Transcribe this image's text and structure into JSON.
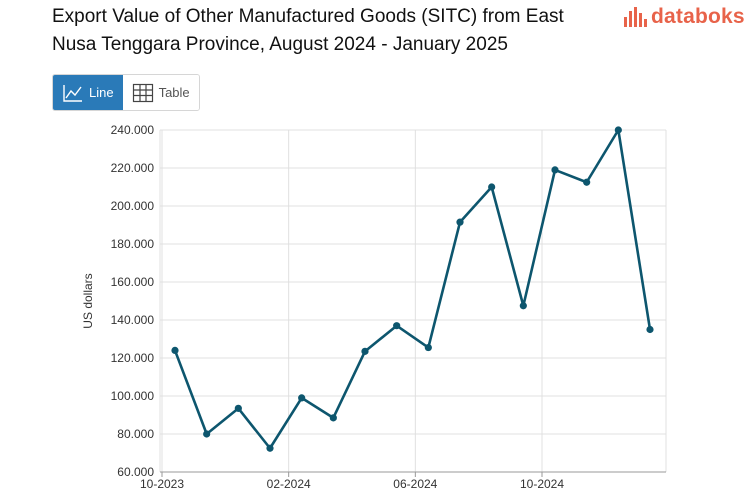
{
  "header": {
    "title": "Export Value of Other Manufactured Goods (SITC) from East Nusa Tenggara Province, August 2024 - January 2025",
    "brand": "databoks"
  },
  "view_toggle": {
    "line_label": "Line",
    "table_label": "Table",
    "active": "line"
  },
  "colors": {
    "line": "#0d566e",
    "grid": "#e0e0e0",
    "toggle_active": "#2a7ab8",
    "brand": "#e8634a"
  },
  "chart_data": {
    "type": "line",
    "title": "Export Value of Other Manufactured Goods (SITC) from East Nusa Tenggara Province, August 2024 - January 2025",
    "xlabel": "",
    "ylabel": "US dollars",
    "ylim": [
      60000,
      240000
    ],
    "yticks": [
      60000,
      80000,
      100000,
      120000,
      140000,
      160000,
      180000,
      200000,
      220000,
      240000
    ],
    "ytick_labels": [
      "60.000",
      "80.000",
      "100.000",
      "120.000",
      "140.000",
      "160.000",
      "180.000",
      "200.000",
      "220.000",
      "240.000"
    ],
    "x": [
      "2023-10",
      "2023-11",
      "2023-12",
      "2024-01",
      "2024-02",
      "2024-03",
      "2024-04",
      "2024-05",
      "2024-06",
      "2024-07",
      "2024-08",
      "2024-09",
      "2024-10",
      "2024-11",
      "2024-12",
      "2025-01"
    ],
    "xticks": [
      {
        "index": 0,
        "label": "10-2023"
      },
      {
        "index": 4,
        "label": "02-2024"
      },
      {
        "index": 8,
        "label": "06-2024"
      },
      {
        "index": 12,
        "label": "10-2024"
      }
    ],
    "series": [
      {
        "name": "Export Value",
        "values": [
          124000,
          80000,
          93500,
          72500,
          99000,
          88500,
          123500,
          137000,
          125500,
          191500,
          210000,
          147500,
          219000,
          212500,
          240000,
          135000
        ]
      }
    ],
    "grid": true,
    "legend": "none"
  }
}
